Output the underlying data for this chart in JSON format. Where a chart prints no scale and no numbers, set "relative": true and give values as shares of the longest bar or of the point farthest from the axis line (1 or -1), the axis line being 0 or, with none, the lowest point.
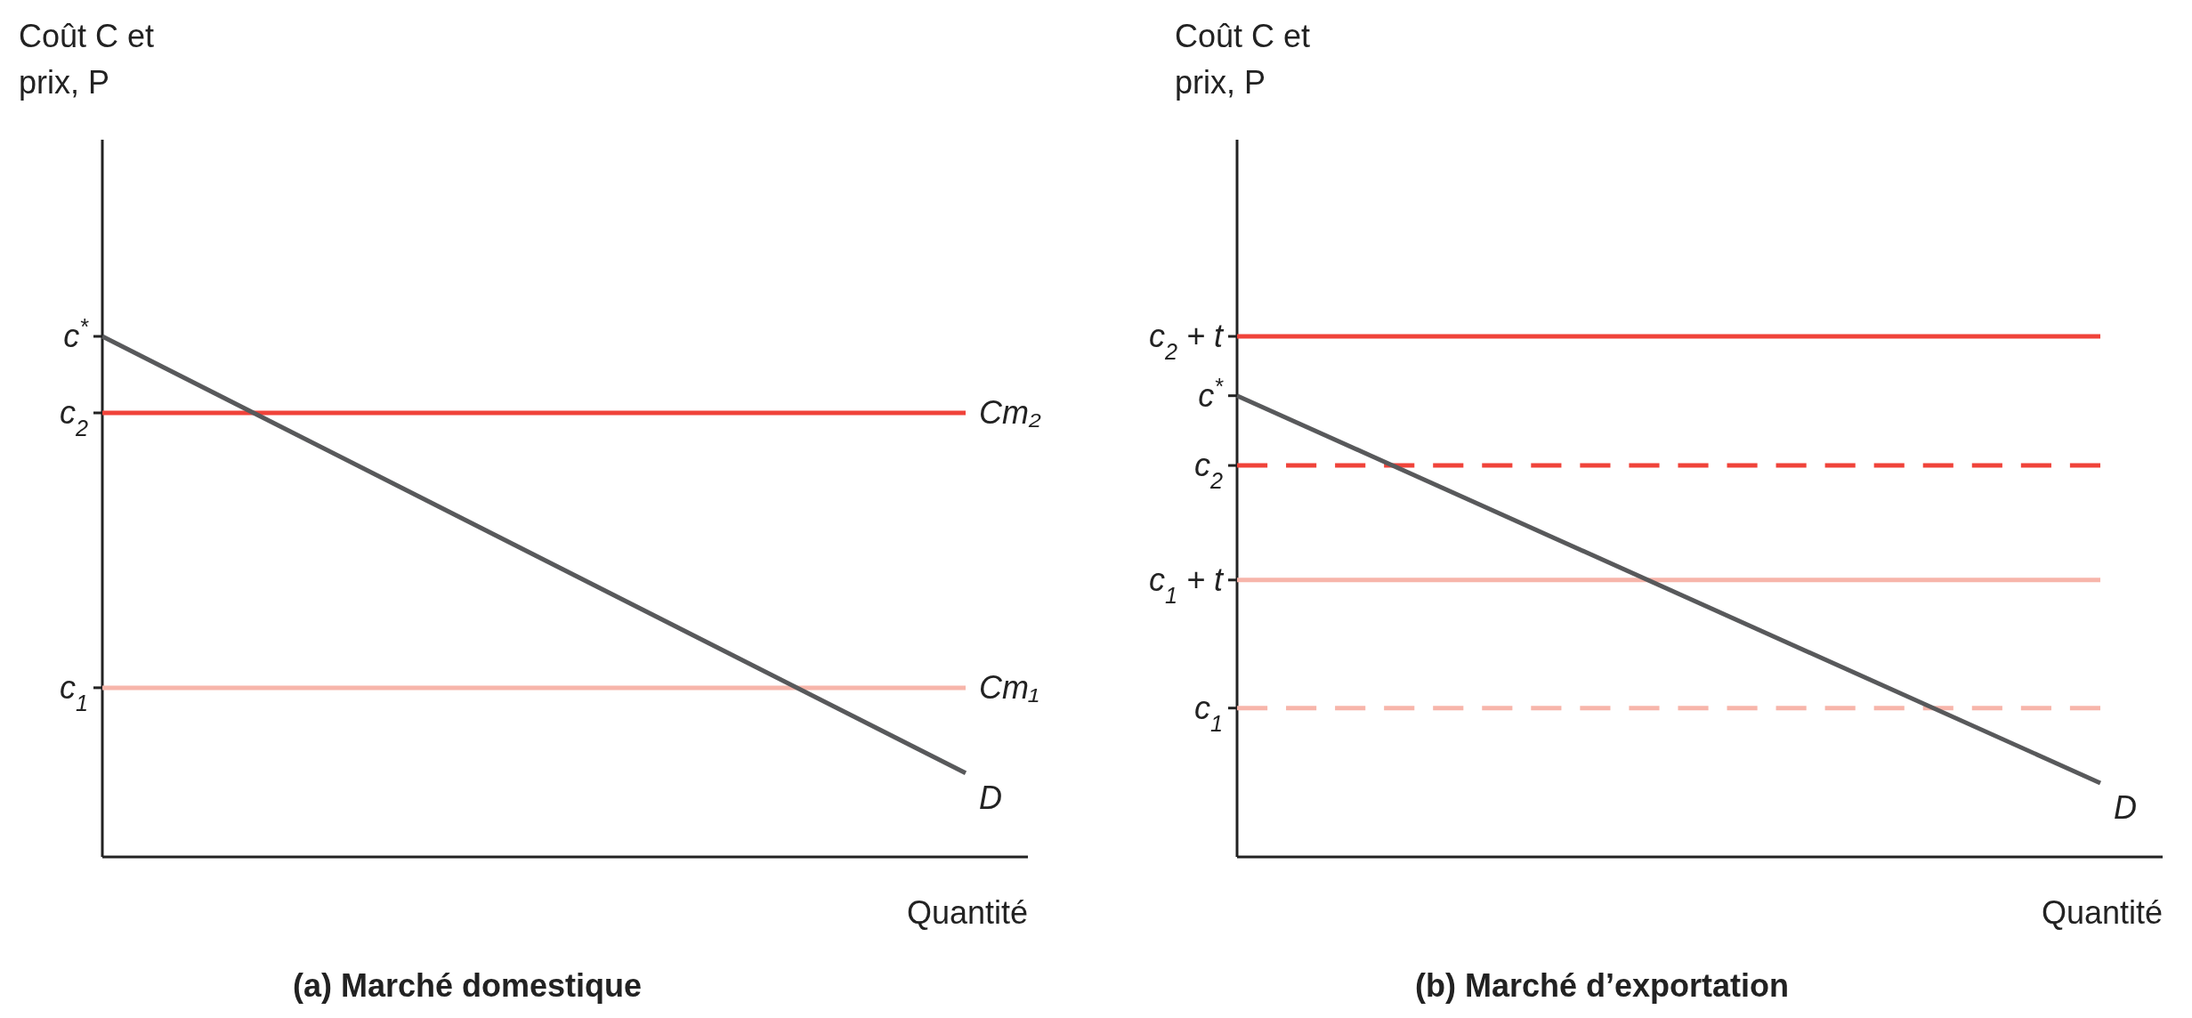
{
  "chart_data": [
    {
      "type": "line",
      "title": "(a) Marché domestique",
      "xlabel": "Quantité",
      "ylabel": "Coût C et prix, P",
      "relative": true,
      "categories": [
        null,
        null
      ],
      "marker": "none",
      "series": [
        {
          "name": "Cm₂",
          "color": "#f0433a",
          "values": [
            0.853,
            0.853
          ],
          "line_style": "solid"
        },
        {
          "name": "Cm₁",
          "color": "#f7b5aa",
          "values": [
            0.325,
            0.325
          ],
          "line_style": "solid"
        },
        {
          "name": "D",
          "color": "#58595b",
          "values": [
            1,
            0.161
          ],
          "line_style": "solid"
        }
      ],
      "annotations": [
        "c$^{*}$",
        "c$_{2}$",
        "c$_{1}$"
      ]
    },
    {
      "type": "line",
      "title": "(b) Marché d’exportation",
      "xlabel": "Quantité",
      "ylabel": "Coût C et prix, P",
      "relative": true,
      "categories": [
        null,
        null
      ],
      "marker": "none",
      "series": [
        {
          "color": "#f0433a",
          "values": [
            1,
            1
          ],
          "line_style": "solid"
        },
        {
          "color": "#f0433a",
          "values": [
            0.752,
            0.752
          ],
          "line_style": "dashed"
        },
        {
          "color": "#f7b5aa",
          "values": [
            0.532,
            0.532
          ],
          "line_style": "solid"
        },
        {
          "color": "#f7b5aa",
          "values": [
            0.286,
            0.286
          ],
          "line_style": "dashed"
        },
        {
          "name": "D",
          "color": "#58595b",
          "values": [
            0.886,
            0.142
          ],
          "line_style": "solid"
        }
      ],
      "annotations": [
        "c$_{2}$ + t",
        "c$^{*}$",
        "c$_{2}$",
        "c$_{1}$ + t",
        "c$_{1}$"
      ]
    }
  ]
}
